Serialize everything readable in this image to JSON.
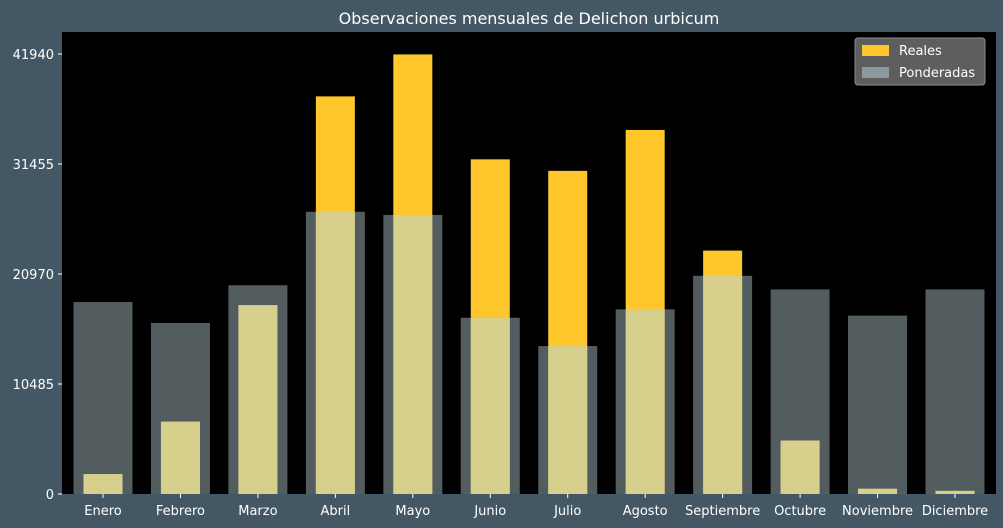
{
  "chart_data": {
    "type": "bar",
    "title": "Observaciones mensuales de Delichon urbicum",
    "xlabel": "",
    "ylabel": "",
    "categories": [
      "Enero",
      "Febrero",
      "Marzo",
      "Abril",
      "Mayo",
      "Junio",
      "Julio",
      "Agosto",
      "Septiembre",
      "Octubre",
      "Noviembre",
      "Diciembre"
    ],
    "series": [
      {
        "name": "Ponderadas",
        "color": "#8a9a9e",
        "values": [
          18300,
          16300,
          19900,
          26900,
          26600,
          16800,
          14100,
          17600,
          20800,
          19500,
          17000,
          19500
        ]
      },
      {
        "name": "Reales",
        "color": "#ffc72c",
        "values": [
          1900,
          6900,
          18000,
          37900,
          41900,
          31900,
          30800,
          34700,
          23200,
          5100,
          500,
          300
        ]
      }
    ],
    "ylim": [
      0,
      41940
    ],
    "yticks": [
      0,
      10485,
      20970,
      31455,
      41940
    ],
    "grid": false,
    "legend": "top-right",
    "background": "#000000",
    "overlap_color": "#d6d08c"
  }
}
